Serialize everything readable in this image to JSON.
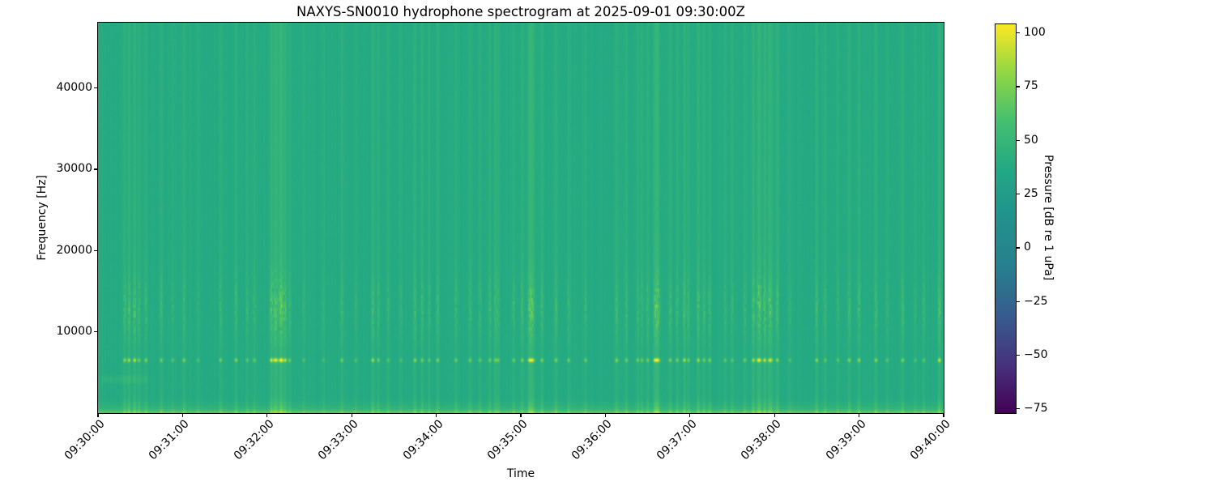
{
  "chart_data": {
    "type": "heatmap",
    "subtype": "spectrogram",
    "title": "NAXYS-SN0010 hydrophone spectrogram at 2025-09-01 09:30:00Z",
    "xlabel": "Time",
    "ylabel": "Frequency [Hz]",
    "x_tick_labels": [
      "09:30:00",
      "09:31:00",
      "09:32:00",
      "09:33:00",
      "09:34:00",
      "09:35:00",
      "09:36:00",
      "09:37:00",
      "09:38:00",
      "09:39:00",
      "09:40:00"
    ],
    "x_range": {
      "start_label": "09:30:00",
      "end_label": "09:40:00",
      "duration_s": 600
    },
    "y_tick_values": [
      10000,
      20000,
      30000,
      40000
    ],
    "y_range_hz": [
      0,
      48000
    ],
    "grid": false,
    "legend": "none",
    "colormap": "viridis",
    "colormap_stops": [
      "#440154",
      "#46327e",
      "#365c8d",
      "#277f8e",
      "#21918c",
      "#22a884",
      "#44bf70",
      "#90d743",
      "#fde725"
    ],
    "colorbar": {
      "label": "Pressure [dB re 1 uPa]",
      "tick_values": [
        100,
        75,
        50,
        25,
        0,
        -25,
        -50,
        -75
      ],
      "vmin": -77,
      "vmax": 104,
      "position": "right"
    },
    "background_level": {
      "normalized": 0.655,
      "approx_db": 42,
      "color": "#35b779"
    },
    "bands": [
      {
        "name": "broadband-background",
        "freq_hz": [
          0,
          48000
        ],
        "approx_db": 42,
        "description": "uniform green field with faint brighter/darker vertical streaks"
      },
      {
        "name": "impulsive-tonal-band",
        "freq_hz": [
          6100,
          6900
        ],
        "peak_db_range": [
          70,
          104
        ],
        "description": "row of bright yellow dots at transient event times near 6.5 kHz"
      },
      {
        "name": "elevated-mid-band",
        "freq_hz": [
          9500,
          17500
        ],
        "peak_db_range": [
          50,
          90
        ],
        "description": "yellow-green vertical dashes during events, densest 10-16 kHz"
      },
      {
        "name": "low-frequency-floor",
        "freq_hz": [
          0,
          2400
        ],
        "approx_db": 55,
        "description": "brighter yellow-green strip along the bottom edge of the plot"
      },
      {
        "name": "left-smudge",
        "freq_hz": [
          3600,
          4700
        ],
        "time_s": [
          3,
          35
        ],
        "description": "faint lighter horizontal patch near start of record"
      }
    ],
    "events_format": [
      "seconds_after_start",
      "relative_intensity_0_1"
    ],
    "transient_events": [
      [
        19,
        0.6
      ],
      [
        22,
        0.7
      ],
      [
        26,
        0.8
      ],
      [
        29,
        0.5
      ],
      [
        34,
        0.6
      ],
      [
        45,
        0.5
      ],
      [
        53,
        0.4
      ],
      [
        61,
        0.55
      ],
      [
        71,
        0.35
      ],
      [
        87,
        0.5
      ],
      [
        98,
        0.6
      ],
      [
        106,
        0.4
      ],
      [
        111,
        0.45
      ],
      [
        123,
        0.8
      ],
      [
        126,
        0.9
      ],
      [
        130,
        1.0
      ],
      [
        133,
        0.7
      ],
      [
        136,
        0.5
      ],
      [
        146,
        0.35
      ],
      [
        160,
        0.3
      ],
      [
        173,
        0.5
      ],
      [
        183,
        0.35
      ],
      [
        195,
        0.7
      ],
      [
        199,
        0.5
      ],
      [
        206,
        0.4
      ],
      [
        215,
        0.35
      ],
      [
        225,
        0.6
      ],
      [
        230,
        0.5
      ],
      [
        235,
        0.4
      ],
      [
        241,
        0.55
      ],
      [
        254,
        0.5
      ],
      [
        264,
        0.5
      ],
      [
        271,
        0.45
      ],
      [
        278,
        0.5
      ],
      [
        282,
        0.5
      ],
      [
        284,
        0.45
      ],
      [
        295,
        0.5
      ],
      [
        301,
        0.55
      ],
      [
        306,
        0.6
      ],
      [
        308,
        0.9
      ],
      [
        315,
        0.5
      ],
      [
        325,
        0.55
      ],
      [
        334,
        0.5
      ],
      [
        346,
        0.5
      ],
      [
        368,
        0.6
      ],
      [
        375,
        0.5
      ],
      [
        383,
        0.5
      ],
      [
        386,
        0.45
      ],
      [
        390,
        0.5
      ],
      [
        395,
        0.6
      ],
      [
        397,
        0.95
      ],
      [
        406,
        0.55
      ],
      [
        411,
        0.5
      ],
      [
        416,
        0.7
      ],
      [
        419,
        0.5
      ],
      [
        426,
        0.65
      ],
      [
        430,
        0.5
      ],
      [
        434,
        0.55
      ],
      [
        445,
        0.4
      ],
      [
        450,
        0.4
      ],
      [
        459,
        0.5
      ],
      [
        465,
        0.7
      ],
      [
        469,
        0.95
      ],
      [
        473,
        0.8
      ],
      [
        477,
        0.85
      ],
      [
        482,
        0.6
      ],
      [
        491,
        0.35
      ],
      [
        510,
        0.6
      ],
      [
        516,
        0.4
      ],
      [
        525,
        0.4
      ],
      [
        533,
        0.6
      ],
      [
        540,
        0.65
      ],
      [
        552,
        0.6
      ],
      [
        560,
        0.4
      ],
      [
        571,
        0.55
      ],
      [
        580,
        0.35
      ],
      [
        586,
        0.4
      ],
      [
        597,
        0.8
      ]
    ]
  }
}
